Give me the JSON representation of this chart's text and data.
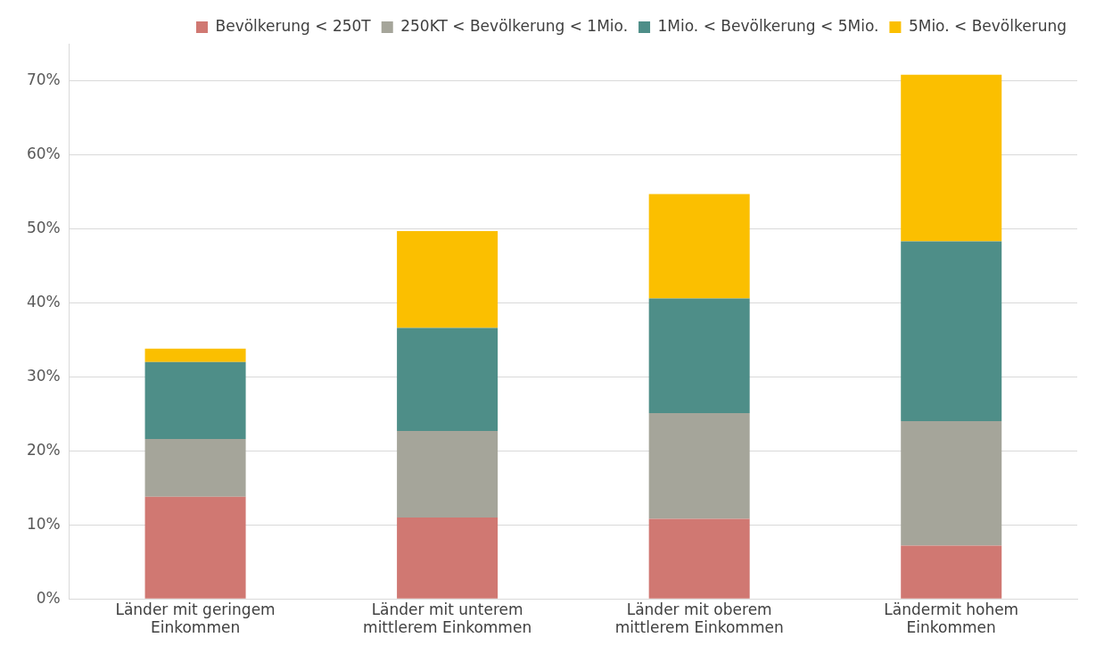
{
  "chart_data": {
    "type": "bar",
    "stacked": true,
    "categories": [
      "Länder mit geringem Einkommen",
      "Länder mit unterem mittlerem Einkommen",
      "Länder mit oberem mittlerem Einkommen",
      "Ländermit hohem Einkommen"
    ],
    "series": [
      {
        "name": "Bevölkerung < 250T",
        "color": "#d07872",
        "values": [
          13.8,
          11,
          10.8,
          7.2
        ]
      },
      {
        "name": "250KT < Bevölkerung < 1Mio.",
        "color": "#a5a59a",
        "values": [
          7.8,
          11.7,
          14.3,
          16.8
        ]
      },
      {
        "name": "1Mio. < Bevölkerung < 5Mio.",
        "color": "#4e8e88",
        "values": [
          10.4,
          13.9,
          15.5,
          24.3
        ]
      },
      {
        "name": "5Mio. < Bevölkerung",
        "color": "#fbbf00",
        "values": [
          1.8,
          13.1,
          14.1,
          22.5
        ]
      }
    ],
    "ylim": [
      0,
      75
    ],
    "yticks": [
      {
        "value": 0,
        "label": "0%"
      },
      {
        "value": 10,
        "label": "10%"
      },
      {
        "value": 20,
        "label": "20%"
      },
      {
        "value": 30,
        "label": "30%"
      },
      {
        "value": 40,
        "label": "40%"
      },
      {
        "value": 50,
        "label": "50%"
      },
      {
        "value": 60,
        "label": "60%"
      },
      {
        "value": 70,
        "label": "70%"
      }
    ],
    "grid": "y",
    "legend": "top"
  }
}
